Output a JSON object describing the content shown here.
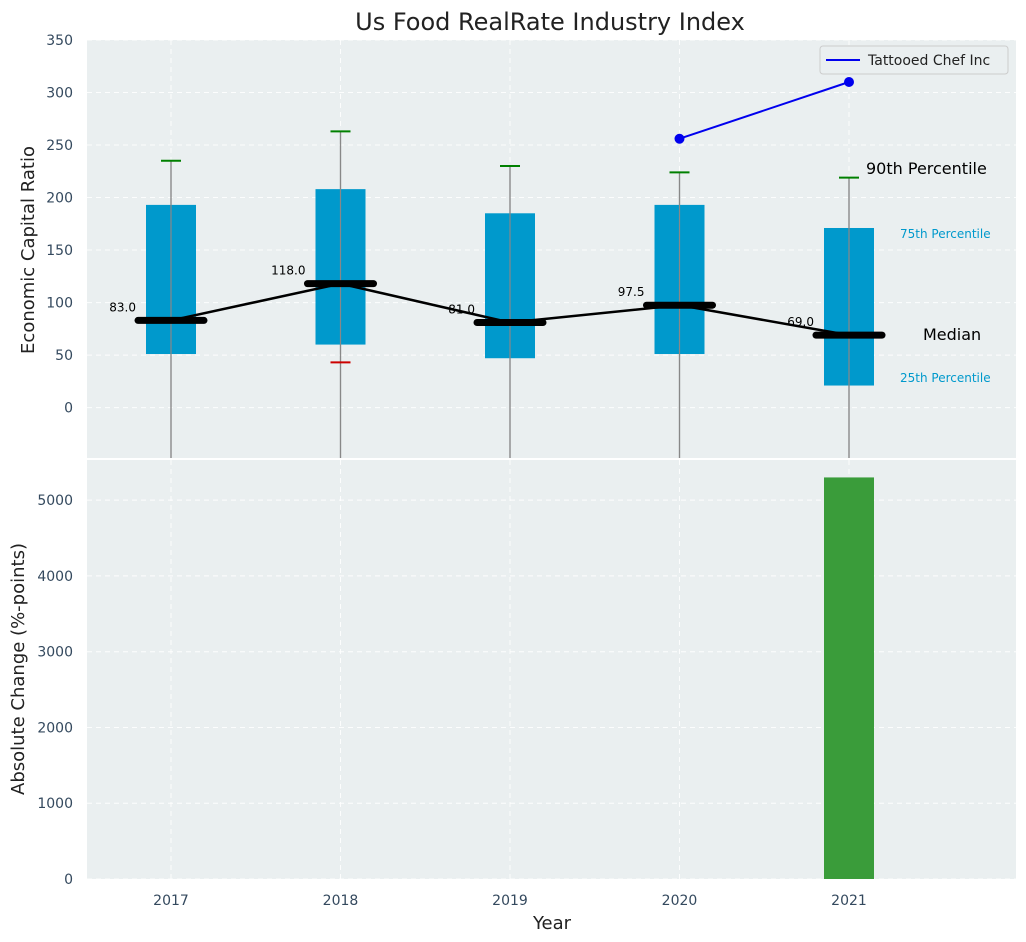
{
  "chart_data": [
    {
      "type": "box",
      "title": "Us Food RealRate Industry Index",
      "ylabel": "Economic Capital Ratio",
      "xlabel": "",
      "ylim": [
        -48,
        350
      ],
      "yticks": [
        0,
        50,
        100,
        150,
        200,
        250,
        300,
        350
      ],
      "categories": [
        "2017",
        "2018",
        "2019",
        "2020",
        "2021"
      ],
      "boxes": [
        {
          "year": "2017",
          "p25": 51,
          "median": 83.0,
          "p75": 193,
          "p90": 235,
          "p10": null,
          "median_label": "83.0"
        },
        {
          "year": "2018",
          "p25": 60,
          "median": 118.0,
          "p75": 208,
          "p90": 263,
          "p10": 43,
          "median_label": "118.0"
        },
        {
          "year": "2019",
          "p25": 47,
          "median": 81.0,
          "p75": 185,
          "p90": 230,
          "p10": null,
          "median_label": "81.0"
        },
        {
          "year": "2020",
          "p25": 51,
          "median": 97.5,
          "p75": 193,
          "p90": 224,
          "p10": null,
          "median_label": "97.5"
        },
        {
          "year": "2021",
          "p25": 21,
          "median": 69.0,
          "p75": 171,
          "p90": 219,
          "p10": null,
          "median_label": "69.0"
        }
      ],
      "series": [
        {
          "name": "Tattooed Chef Inc",
          "color": "#0000ee",
          "x": [
            "2020",
            "2021"
          ],
          "values": [
            256,
            310
          ]
        }
      ],
      "legend": {
        "position": "top-right",
        "entries": [
          "Tattooed Chef Inc"
        ]
      },
      "annotations": {
        "p90": "90th Percentile",
        "p75": "75th Percentile",
        "median": "Median",
        "p25": "25th Percentile"
      },
      "colors": {
        "box": "#0099cc",
        "whisker_top": "#008000",
        "whisker_bottom": "#cc0000",
        "median": "#000000",
        "plot_bg": "#eaeff0",
        "annotation_small": "#0099cc"
      }
    },
    {
      "type": "bar",
      "ylabel": "Absolute Change (%-points)",
      "xlabel": "Year",
      "ylim": [
        0,
        5530
      ],
      "yticks": [
        0,
        1000,
        2000,
        3000,
        4000,
        5000
      ],
      "categories": [
        "2017",
        "2018",
        "2019",
        "2020",
        "2021"
      ],
      "values": [
        null,
        null,
        null,
        null,
        5300
      ],
      "colors": {
        "bar": "#3a9c3a"
      }
    }
  ]
}
